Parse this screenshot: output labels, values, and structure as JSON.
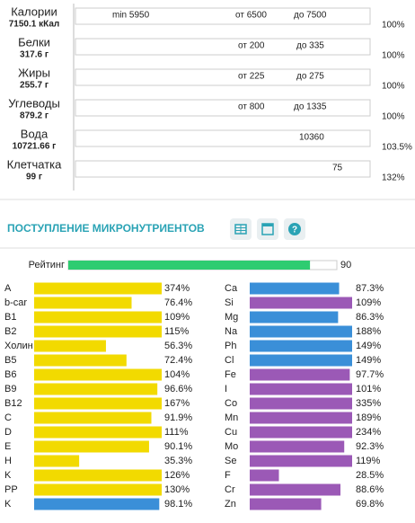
{
  "macros": [
    {
      "name": "Калории",
      "amount": "7150.1 кКал",
      "markers": [
        "min 5950",
        "от 6500",
        "до 7500"
      ],
      "percent": 100,
      "percent_label": "100%"
    },
    {
      "name": "Белки",
      "amount": "317.6 г",
      "markers": [
        "от 200",
        "до 335"
      ],
      "percent": 100,
      "percent_label": "100%"
    },
    {
      "name": "Жиры",
      "amount": "255.7 г",
      "markers": [
        "от 225",
        "до 275"
      ],
      "percent": 100,
      "percent_label": "100%"
    },
    {
      "name": "Углеводы",
      "amount": "879.2 г",
      "markers": [
        "от 800",
        "до 1335"
      ],
      "percent": 100,
      "percent_label": "100%"
    },
    {
      "name": "Вода",
      "amount": "10721.66 г",
      "markers": [
        "10360"
      ],
      "percent": 103.5,
      "percent_label": "103.5%"
    },
    {
      "name": "Клетчатка",
      "amount": "99 г",
      "markers": [
        "75"
      ],
      "percent": 132,
      "percent_label": "132%"
    }
  ],
  "micro": {
    "title": "ПОСТУПЛЕНИЕ МИКРОНУТРИЕНТОВ",
    "rating": {
      "label": "Рейтинг",
      "value": 90
    },
    "vitamins": [
      {
        "name": "A",
        "value": 374,
        "label": "374%",
        "color": "#f2da00"
      },
      {
        "name": "b-car",
        "value": 76.4,
        "label": "76.4%",
        "color": "#f2da00"
      },
      {
        "name": "B1",
        "value": 109,
        "label": "109%",
        "color": "#f2da00"
      },
      {
        "name": "B2",
        "value": 115,
        "label": "115%",
        "color": "#f2da00"
      },
      {
        "name": "Холин",
        "value": 56.3,
        "label": "56.3%",
        "color": "#f2da00"
      },
      {
        "name": "B5",
        "value": 72.4,
        "label": "72.4%",
        "color": "#f2da00"
      },
      {
        "name": "B6",
        "value": 104,
        "label": "104%",
        "color": "#f2da00"
      },
      {
        "name": "B9",
        "value": 96.6,
        "label": "96.6%",
        "color": "#f2da00"
      },
      {
        "name": "B12",
        "value": 167,
        "label": "167%",
        "color": "#f2da00"
      },
      {
        "name": "C",
        "value": 91.9,
        "label": "91.9%",
        "color": "#f2da00"
      },
      {
        "name": "D",
        "value": 111,
        "label": "111%",
        "color": "#f2da00"
      },
      {
        "name": "E",
        "value": 90.1,
        "label": "90.1%",
        "color": "#f2da00"
      },
      {
        "name": "H",
        "value": 35.3,
        "label": "35.3%",
        "color": "#f2da00"
      },
      {
        "name": "K",
        "value": 126,
        "label": "126%",
        "color": "#f2da00"
      },
      {
        "name": "PP",
        "value": 130,
        "label": "130%",
        "color": "#f2da00"
      },
      {
        "name": "K",
        "value": 98.1,
        "label": "98.1%",
        "color": "#3a8fd8"
      }
    ],
    "minerals": [
      {
        "name": "Ca",
        "value": 87.3,
        "label": "87.3%",
        "color": "#3a8fd8"
      },
      {
        "name": "Si",
        "value": 109,
        "label": "109%",
        "color": "#9b59b6"
      },
      {
        "name": "Mg",
        "value": 86.3,
        "label": "86.3%",
        "color": "#3a8fd8"
      },
      {
        "name": "Na",
        "value": 188,
        "label": "188%",
        "color": "#3a8fd8"
      },
      {
        "name": "Ph",
        "value": 149,
        "label": "149%",
        "color": "#3a8fd8"
      },
      {
        "name": "Cl",
        "value": 149,
        "label": "149%",
        "color": "#3a8fd8"
      },
      {
        "name": "Fe",
        "value": 97.7,
        "label": "97.7%",
        "color": "#9b59b6"
      },
      {
        "name": "I",
        "value": 101,
        "label": "101%",
        "color": "#9b59b6"
      },
      {
        "name": "Co",
        "value": 335,
        "label": "335%",
        "color": "#9b59b6"
      },
      {
        "name": "Mn",
        "value": 189,
        "label": "189%",
        "color": "#9b59b6"
      },
      {
        "name": "Cu",
        "value": 234,
        "label": "234%",
        "color": "#9b59b6"
      },
      {
        "name": "Mo",
        "value": 92.3,
        "label": "92.3%",
        "color": "#9b59b6"
      },
      {
        "name": "Se",
        "value": 119,
        "label": "119%",
        "color": "#9b59b6"
      },
      {
        "name": "F",
        "value": 28.5,
        "label": "28.5%",
        "color": "#9b59b6"
      },
      {
        "name": "Cr",
        "value": 88.6,
        "label": "88.6%",
        "color": "#9b59b6"
      },
      {
        "name": "Zn",
        "value": 69.8,
        "label": "69.8%",
        "color": "#9b59b6"
      }
    ]
  }
}
